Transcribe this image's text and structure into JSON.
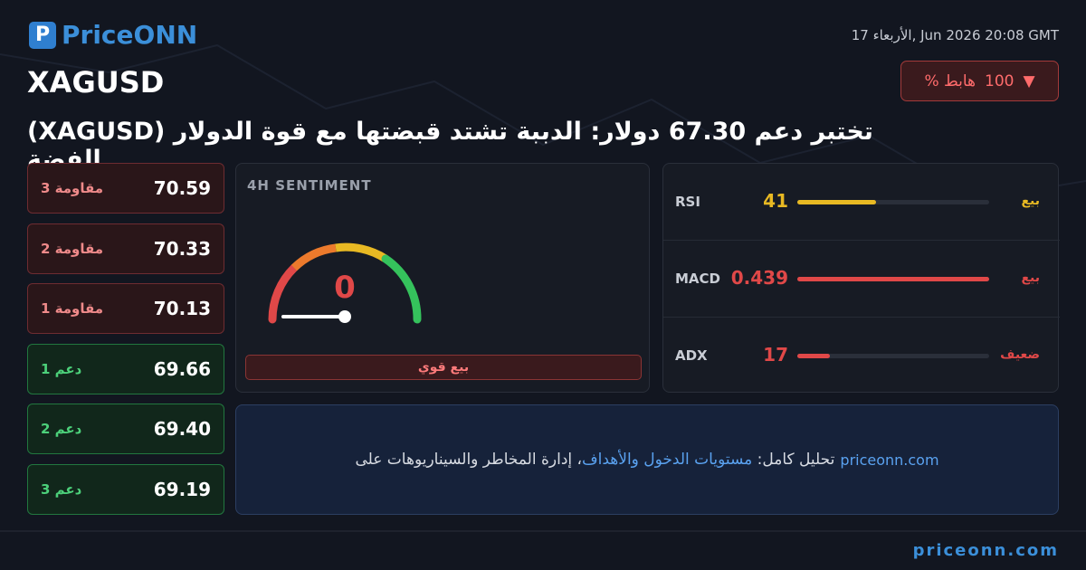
{
  "brand": {
    "name": "PriceONN"
  },
  "header": {
    "symbol": "XAGUSD",
    "date": "17 الأربعاء, Jun 2026 20:08 GMT",
    "badge": {
      "value": "100",
      "label": "% هابط"
    },
    "headline": "تختبر دعم 67.30 دولار: الدببة تشتد قبضتها مع قوة الدولار (XAGUSD) الفضة"
  },
  "levels": [
    {
      "label": "مقاومة 3",
      "value": "70.59",
      "kind": "resistance"
    },
    {
      "label": "مقاومة 2",
      "value": "70.33",
      "kind": "resistance"
    },
    {
      "label": "مقاومة 1",
      "value": "70.13",
      "kind": "resistance"
    },
    {
      "label": "دعم 1",
      "value": "69.66",
      "kind": "support"
    },
    {
      "label": "دعم 2",
      "value": "69.40",
      "kind": "support"
    },
    {
      "label": "دعم 3",
      "value": "69.19",
      "kind": "support"
    }
  ],
  "sentiment": {
    "title": "4H SENTIMENT",
    "value": 0,
    "label": "بيع قوي"
  },
  "indicators": [
    {
      "name": "RSI",
      "value": 41,
      "signal": "بيع",
      "color": "#e8b923"
    },
    {
      "name": "MACD",
      "value": 0.439,
      "signal": "بيع",
      "color": "#e04848"
    },
    {
      "name": "ADX",
      "value": 17,
      "signal": "ضعيف",
      "color": "#e04848"
    }
  ],
  "cta": {
    "site": "priceonn.com",
    "prefix": "تحليل كامل: ",
    "highlight": "مستويات الدخول والأهداف",
    "suffix": "، إدارة المخاطر والسيناريوهات على"
  },
  "footer": {
    "site": "priceonn.com"
  }
}
